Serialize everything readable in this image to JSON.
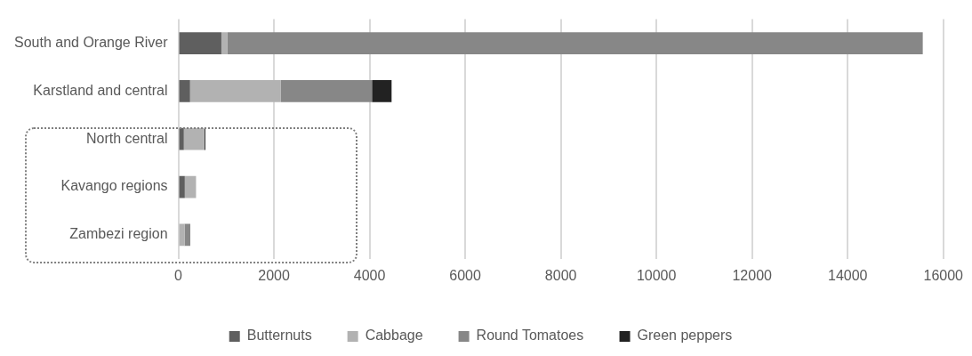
{
  "chart_data": {
    "type": "bar",
    "orientation": "horizontal",
    "stacked": true,
    "categories": [
      "South and Orange River",
      "Karstland and central",
      "North central",
      "Kavango regions",
      "Zambezi region"
    ],
    "series": [
      {
        "name": "Butternuts",
        "color": "#5f5f5f",
        "values": [
          900,
          245,
          115,
          135,
          0
        ]
      },
      {
        "name": "Cabbage",
        "color": "#b2b2b2",
        "values": [
          130,
          1900,
          430,
          235,
          130
        ]
      },
      {
        "name": "Round Tomatoes",
        "color": "#878787",
        "values": [
          14540,
          1905,
          0,
          0,
          120
        ]
      },
      {
        "name": "Green peppers",
        "color": "#222222",
        "values": [
          0,
          410,
          20,
          0,
          0
        ]
      }
    ],
    "xlim": [
      0,
      16000
    ],
    "xticks": [
      0,
      2000,
      4000,
      6000,
      8000,
      10000,
      12000,
      14000,
      16000
    ],
    "grid": "x",
    "legend": "bottom"
  }
}
